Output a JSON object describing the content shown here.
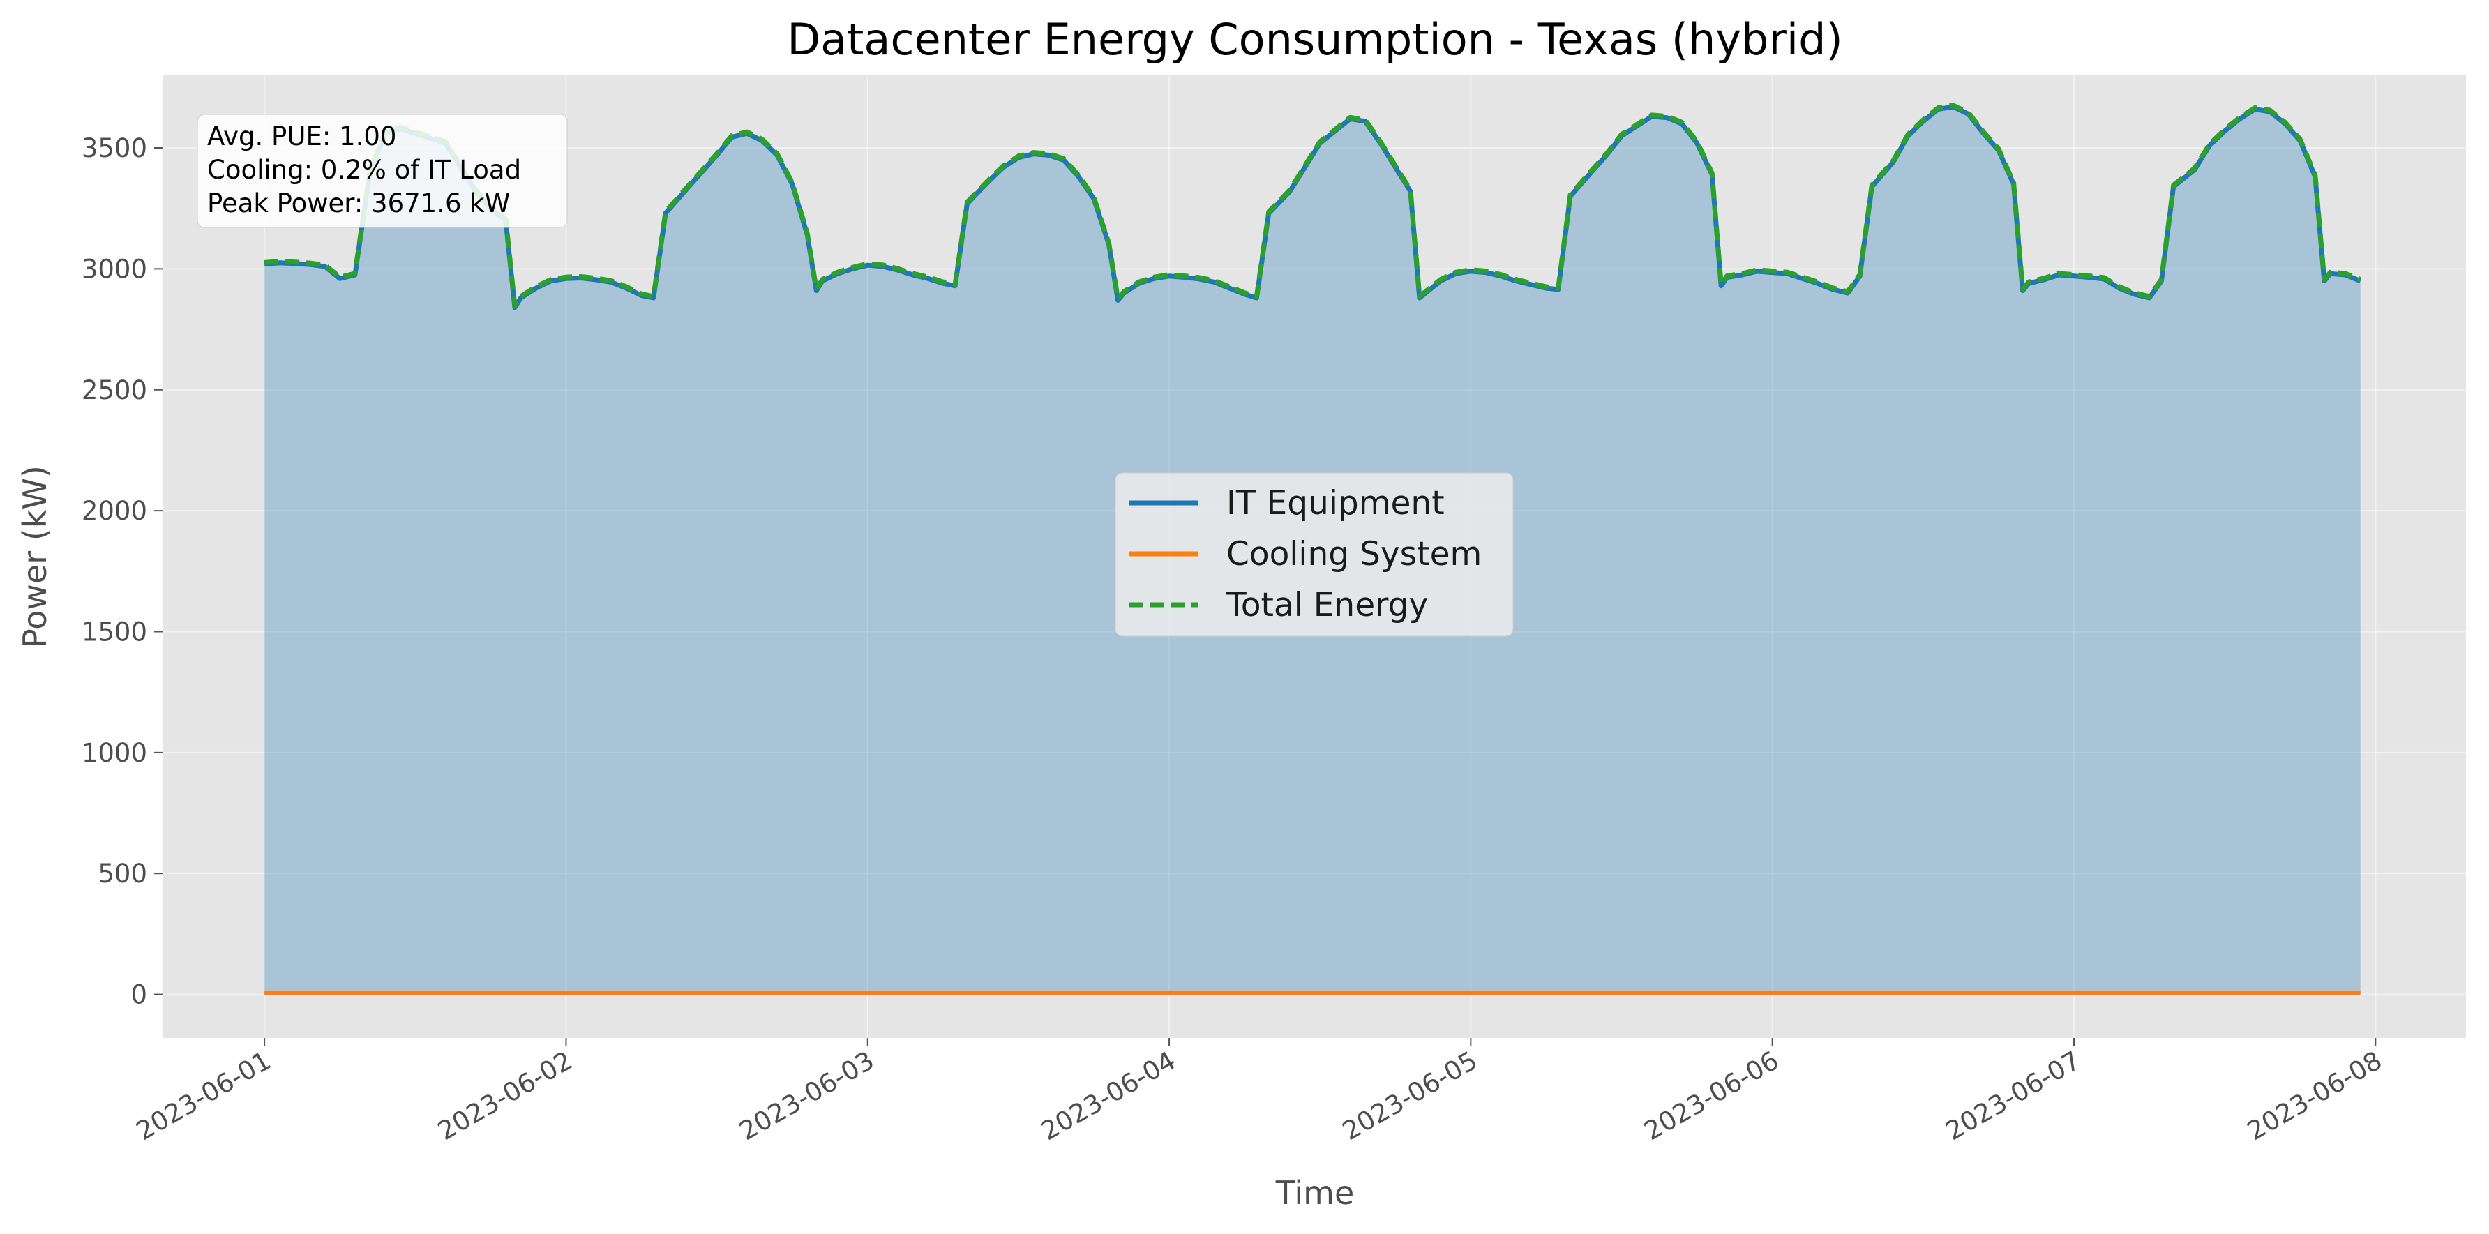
{
  "chart_data": {
    "type": "line",
    "title": "Datacenter Energy Consumption - Texas (hybrid)",
    "xlabel": "Time",
    "ylabel": "Power (kW)",
    "ylim": [
      -180,
      3800
    ],
    "xlim": [
      -0.338,
      7.3
    ],
    "grid": true,
    "legend_position": "center",
    "y_ticks": [
      0,
      500,
      1000,
      1500,
      2000,
      2500,
      3000,
      3500
    ],
    "x_ticks": [
      {
        "value": 0,
        "label": "2023-06-01"
      },
      {
        "value": 1,
        "label": "2023-06-02"
      },
      {
        "value": 2,
        "label": "2023-06-03"
      },
      {
        "value": 3,
        "label": "2023-06-04"
      },
      {
        "value": 4,
        "label": "2023-06-05"
      },
      {
        "value": 5,
        "label": "2023-06-06"
      },
      {
        "value": 6,
        "label": "2023-06-07"
      },
      {
        "value": 7,
        "label": "2023-06-08"
      }
    ],
    "x_unit": "days since 2023-06-01",
    "series": [
      {
        "name": "IT Equipment",
        "color": "#1f77b4",
        "style": "solid",
        "fill": true,
        "x": [
          0,
          0.05,
          0.1,
          0.15,
          0.2,
          0.25,
          0.3,
          0.35,
          0.4,
          0.45,
          0.5,
          0.55,
          0.6,
          0.65,
          0.7,
          0.75,
          0.8,
          0.83,
          0.85,
          0.9,
          0.95,
          1.0,
          1.05,
          1.1,
          1.15,
          1.2,
          1.25,
          1.29,
          1.33,
          1.4,
          1.45,
          1.5,
          1.55,
          1.6,
          1.65,
          1.7,
          1.75,
          1.8,
          1.83,
          1.85,
          1.9,
          1.95,
          2.0,
          2.05,
          2.1,
          2.15,
          2.2,
          2.25,
          2.29,
          2.33,
          2.4,
          2.45,
          2.5,
          2.55,
          2.6,
          2.65,
          2.7,
          2.75,
          2.8,
          2.83,
          2.85,
          2.9,
          2.95,
          3.0,
          3.05,
          3.1,
          3.15,
          3.2,
          3.25,
          3.29,
          3.33,
          3.4,
          3.45,
          3.5,
          3.55,
          3.6,
          3.65,
          3.7,
          3.75,
          3.8,
          3.83,
          3.85,
          3.9,
          3.95,
          4.0,
          4.05,
          4.1,
          4.15,
          4.2,
          4.25,
          4.29,
          4.33,
          4.4,
          4.45,
          4.5,
          4.55,
          4.6,
          4.65,
          4.7,
          4.75,
          4.8,
          4.83,
          4.85,
          4.9,
          4.95,
          5.0,
          5.05,
          5.1,
          5.15,
          5.2,
          5.25,
          5.29,
          5.33,
          5.4,
          5.45,
          5.5,
          5.55,
          5.6,
          5.65,
          5.7,
          5.75,
          5.8,
          5.83,
          5.85,
          5.9,
          5.95,
          6.0,
          6.05,
          6.1,
          6.15,
          6.2,
          6.25,
          6.29,
          6.33,
          6.4,
          6.45,
          6.5,
          6.55,
          6.6,
          6.65,
          6.7,
          6.75,
          6.8,
          6.83,
          6.85,
          6.9,
          6.95
        ],
        "y": [
          3020,
          3025,
          3022,
          3018,
          3010,
          2960,
          2975,
          3400,
          3560,
          3580,
          3560,
          3540,
          3520,
          3420,
          3320,
          3250,
          3200,
          2840,
          2880,
          2920,
          2950,
          2960,
          2962,
          2955,
          2945,
          2920,
          2890,
          2880,
          3230,
          3330,
          3400,
          3470,
          3545,
          3560,
          3530,
          3470,
          3350,
          3140,
          2910,
          2950,
          2980,
          3000,
          3015,
          3010,
          2995,
          2975,
          2960,
          2940,
          2930,
          3270,
          3360,
          3420,
          3460,
          3475,
          3470,
          3450,
          3380,
          3290,
          3100,
          2870,
          2900,
          2940,
          2960,
          2970,
          2965,
          2958,
          2945,
          2920,
          2895,
          2880,
          3230,
          3320,
          3420,
          3520,
          3570,
          3620,
          3610,
          3520,
          3420,
          3320,
          2880,
          2900,
          2950,
          2980,
          2990,
          2985,
          2970,
          2950,
          2935,
          2920,
          2915,
          3300,
          3400,
          3470,
          3550,
          3590,
          3630,
          3625,
          3600,
          3520,
          3390,
          2930,
          2965,
          2975,
          2990,
          2985,
          2980,
          2960,
          2940,
          2915,
          2900,
          2970,
          3340,
          3440,
          3550,
          3610,
          3660,
          3670,
          3640,
          3560,
          3490,
          3350,
          2910,
          2940,
          2955,
          2975,
          2970,
          2965,
          2958,
          2920,
          2895,
          2880,
          2950,
          3340,
          3410,
          3510,
          3570,
          3620,
          3660,
          3650,
          3600,
          3530,
          3380,
          2950,
          2980,
          2975,
          2950
        ]
      },
      {
        "name": "Cooling System",
        "color": "#ff7f0e",
        "style": "solid",
        "fill": false,
        "x": [
          0,
          6.95
        ],
        "y": [
          6,
          6
        ]
      },
      {
        "name": "Total Energy",
        "color": "#2ca02c",
        "style": "dashed",
        "fill": false,
        "derived_from": "IT Equipment + Cooling System"
      }
    ],
    "annotation": {
      "lines": [
        "Avg. PUE: 1.00",
        "Cooling: 0.2% of IT Load",
        "Peak Power: 3671.6 kW"
      ],
      "position": "top-left"
    },
    "colors": {
      "axes_background": "#e5e5e5",
      "grid": "#ffffff",
      "fill": "#1f77b4"
    }
  }
}
